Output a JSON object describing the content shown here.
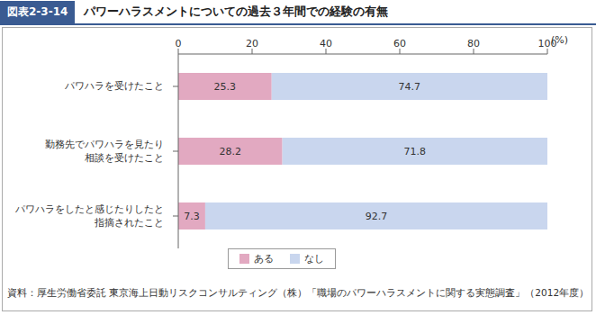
{
  "chart_data": {
    "type": "bar",
    "figure_label": "図表2-3-14",
    "title": "パワーハラスメントについての過去３年間での経験の有無",
    "xlabel": "(%)",
    "source": "資料：厚生労働省委託 東京海上日動リスクコンサルティング（株）「職場のパワーハラスメントに関する実態調査」（2012年度）",
    "categories": [
      "パワハラを受けたこと",
      "勤務先でパワハラを見たり\n相談を受けたこと",
      "パワハラをしたと感じたりしたと\n指摘されたこと"
    ],
    "series": [
      {
        "name": "ある",
        "color": "#e2a9c1",
        "values": [
          25.3,
          28.2,
          7.3
        ]
      },
      {
        "name": "なし",
        "color": "#c9d6ee",
        "values": [
          74.7,
          71.8,
          92.7
        ]
      }
    ],
    "xlim": [
      0,
      100
    ],
    "xticks": [
      0,
      20,
      40,
      60,
      80,
      100
    ],
    "orientation": "horizontal",
    "stacked": true,
    "data_labels": true,
    "grid": false,
    "legend": "bottom"
  }
}
